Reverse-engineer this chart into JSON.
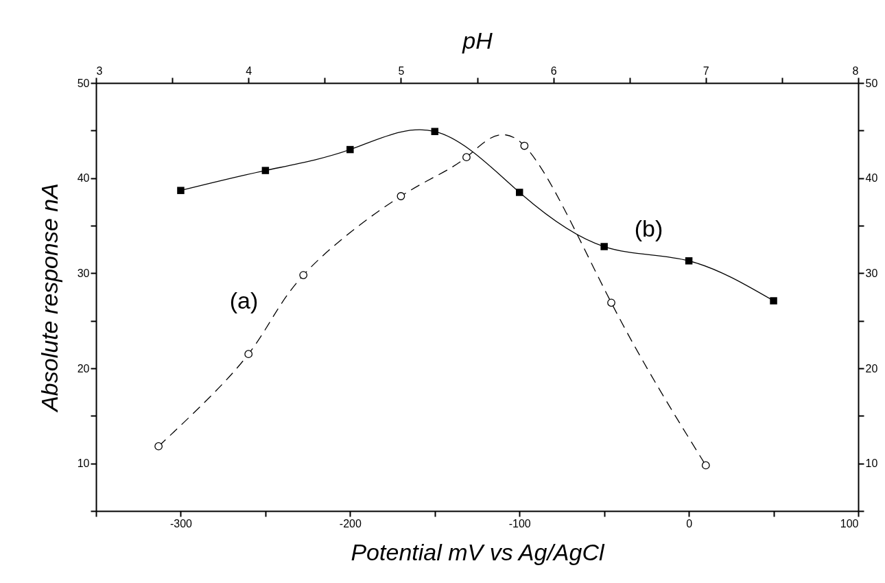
{
  "chart_data": {
    "type": "line",
    "xlabel": "Potential mV vs Ag/AgCl",
    "x2label": "pH",
    "ylabel": "Absolute response nA",
    "xlim": [
      -350,
      100
    ],
    "xticks": [
      {
        "value": -350,
        "label": null
      },
      -300,
      {
        "value": -250,
        "label": null
      },
      -200,
      {
        "value": -150,
        "label": null
      },
      -100,
      {
        "value": -50,
        "label": null
      },
      0,
      {
        "value": 50,
        "label": null
      },
      100
    ],
    "x2lim": [
      3,
      8
    ],
    "x2ticks": [
      3,
      {
        "value": 3.5,
        "label": null
      },
      4,
      {
        "value": 4.5,
        "label": null
      },
      5,
      {
        "value": 5.5,
        "label": null
      },
      6,
      {
        "value": 6.5,
        "label": null
      },
      7,
      {
        "value": 7.5,
        "label": null
      },
      8
    ],
    "ylim": [
      5,
      50
    ],
    "yticks": [
      {
        "value": 5,
        "label": null
      },
      10,
      {
        "value": 15,
        "label": null
      },
      20,
      {
        "value": 25,
        "label": null
      },
      30,
      {
        "value": 35,
        "label": null
      },
      40,
      {
        "value": 45,
        "label": null
      },
      50
    ],
    "y2lim": [
      5,
      50
    ],
    "y2ticks": [
      {
        "value": 5,
        "label": null
      },
      10,
      {
        "value": 15,
        "label": null
      },
      20,
      {
        "value": 25,
        "label": null
      },
      30,
      {
        "value": 35,
        "label": null
      },
      40,
      {
        "value": 45,
        "label": null
      },
      50
    ],
    "grid": false,
    "series": [
      {
        "axis": "x2",
        "color": "#000000",
        "marker": "circle",
        "line_style": "dashed",
        "x": [
          3.41,
          4.0,
          4.36,
          5.0,
          5.43,
          5.81,
          6.38,
          7.0
        ],
        "values": [
          11.8,
          21.5,
          29.8,
          38.1,
          42.2,
          43.4,
          26.9,
          9.8
        ]
      },
      {
        "color": "#000000",
        "marker": "square",
        "line_style": "solid",
        "x": [
          -300,
          -250,
          -200,
          -150,
          -100,
          -50,
          0,
          50
        ],
        "values": [
          38.7,
          40.8,
          43.0,
          44.9,
          38.5,
          32.8,
          31.3,
          27.1
        ]
      }
    ],
    "annotations": [
      "(a)",
      "(b)"
    ]
  }
}
